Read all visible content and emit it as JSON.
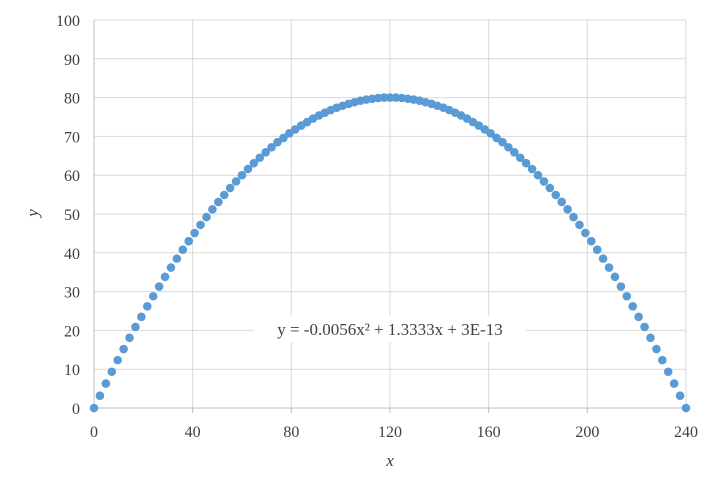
{
  "chart_data": {
    "type": "scatter",
    "xlabel": "x",
    "ylabel": "y",
    "xlim": [
      0,
      240
    ],
    "ylim": [
      0,
      100
    ],
    "x_ticks": [
      "0",
      "40",
      "80",
      "120",
      "160",
      "200",
      "240"
    ],
    "y_ticks": [
      "0",
      "10",
      "20",
      "30",
      "40",
      "50",
      "60",
      "70",
      "80",
      "90",
      "100"
    ],
    "grid": true,
    "trendline_equation": "y = -0.0056x² + 1.3333x + 3E-13",
    "marker_color": "#5b9bd5",
    "series": [
      {
        "x": [
          0,
          2.4,
          4.8,
          7.2,
          9.6,
          12,
          14.4,
          16.8,
          19.2,
          21.6,
          24,
          26.4,
          28.8,
          31.2,
          33.6,
          36,
          38.4,
          40.8,
          43.2,
          45.6,
          48,
          50.4,
          52.8,
          55.2,
          57.6,
          60,
          62.4,
          64.8,
          67.2,
          69.6,
          72,
          74.4,
          76.8,
          79.2,
          81.6,
          84,
          86.4,
          88.8,
          91.2,
          93.6,
          96,
          98.4,
          100.8,
          103.2,
          105.6,
          108,
          110.4,
          112.8,
          115.2,
          117.6,
          120,
          122.4,
          124.8,
          127.2,
          129.6,
          132,
          134.4,
          136.8,
          139.2,
          141.6,
          144,
          146.4,
          148.8,
          151.2,
          153.6,
          156,
          158.4,
          160.8,
          163.2,
          165.6,
          168,
          170.4,
          172.8,
          175.2,
          177.6,
          180,
          182.4,
          184.8,
          187.2,
          189.6,
          192,
          194.4,
          196.8,
          199.2,
          201.6,
          204,
          206.4,
          208.8,
          211.2,
          213.6,
          216,
          218.4,
          220.8,
          223.2,
          225.6,
          228,
          230.4,
          232.8,
          235.2,
          237.6,
          240
        ],
        "y": [
          0,
          3.17,
          6.29,
          9.34,
          12.34,
          15.2,
          18.1,
          20.9,
          23.5,
          26.2,
          28.8,
          31.3,
          33.8,
          36.2,
          38.5,
          40.8,
          43.0,
          45.1,
          47.2,
          49.2,
          51.2,
          53.1,
          54.9,
          56.7,
          58.4,
          60.0,
          61.6,
          63.1,
          64.5,
          65.9,
          67.2,
          68.5,
          69.6,
          70.8,
          71.8,
          72.8,
          73.7,
          74.6,
          75.4,
          76.1,
          76.8,
          77.4,
          77.9,
          78.4,
          78.8,
          79.2,
          79.5,
          79.7,
          79.9,
          80.0,
          80.0,
          80.0,
          79.9,
          79.7,
          79.5,
          79.2,
          78.8,
          78.4,
          77.9,
          77.4,
          76.8,
          76.1,
          75.4,
          74.6,
          73.7,
          72.8,
          71.8,
          70.8,
          69.6,
          68.5,
          67.2,
          65.9,
          64.5,
          63.1,
          61.6,
          60.0,
          58.4,
          56.7,
          54.9,
          53.1,
          51.2,
          49.2,
          47.2,
          45.1,
          43.0,
          40.8,
          38.5,
          36.2,
          33.8,
          31.3,
          28.8,
          26.2,
          23.5,
          20.9,
          18.1,
          15.2,
          12.34,
          9.34,
          6.29,
          3.17,
          0
        ]
      }
    ]
  }
}
